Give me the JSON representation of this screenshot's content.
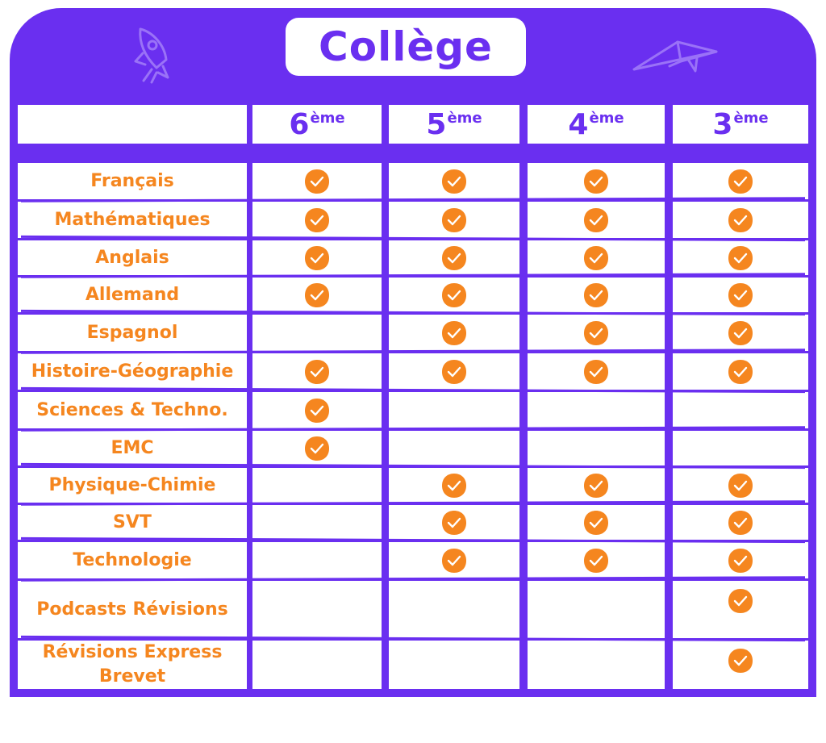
{
  "title": "Collège",
  "grades": [
    {
      "num": "6",
      "sup": "ème"
    },
    {
      "num": "5",
      "sup": "ème"
    },
    {
      "num": "4",
      "sup": "ème"
    },
    {
      "num": "3",
      "sup": "ème"
    }
  ],
  "subjects": [
    {
      "label": "Français",
      "checks": [
        true,
        true,
        true,
        true
      ]
    },
    {
      "label": "Mathématiques",
      "checks": [
        true,
        true,
        true,
        true
      ]
    },
    {
      "label": "Anglais",
      "checks": [
        true,
        true,
        true,
        true
      ]
    },
    {
      "label": "Allemand",
      "checks": [
        true,
        true,
        true,
        true
      ]
    },
    {
      "label": "Espagnol",
      "checks": [
        false,
        true,
        true,
        true
      ]
    },
    {
      "label": "Histoire-Géographie",
      "checks": [
        true,
        true,
        true,
        true
      ]
    },
    {
      "label": "Sciences & Techno.",
      "checks": [
        true,
        false,
        false,
        false
      ]
    },
    {
      "label": "EMC",
      "checks": [
        true,
        false,
        false,
        false
      ]
    },
    {
      "label": "Physique-Chimie",
      "checks": [
        false,
        true,
        true,
        true
      ]
    },
    {
      "label": "SVT",
      "checks": [
        false,
        true,
        true,
        true
      ]
    },
    {
      "label": "Technologie",
      "checks": [
        false,
        true,
        true,
        true
      ]
    },
    {
      "label": "Podcasts Révisions",
      "checks": [
        false,
        false,
        false,
        true
      ]
    },
    {
      "label": "Révisions Express Brevet",
      "checks": [
        false,
        false,
        false,
        true
      ]
    }
  ],
  "colors": {
    "purple": "#6a2ff0",
    "orange": "#f5861f"
  },
  "icons": [
    "rocket-icon",
    "paper-plane-icon",
    "check-badge-icon"
  ]
}
